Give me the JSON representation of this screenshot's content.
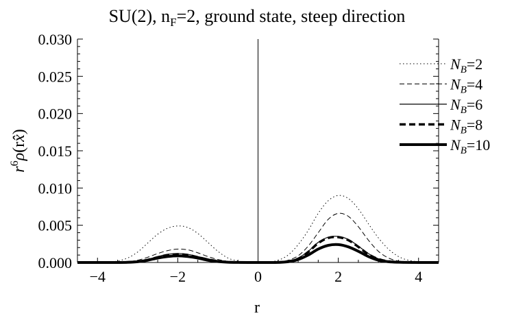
{
  "chart_data": {
    "type": "line",
    "title": "SU(2), n_F=2, ground state, steep direction",
    "xlabel": "r",
    "ylabel": "r^6 ρ(r x̂)",
    "xlim": [
      -4.5,
      4.5
    ],
    "ylim": [
      0,
      0.03
    ],
    "x_ticks": [
      -4,
      -2,
      0,
      2,
      4
    ],
    "y_ticks": [
      0.0,
      0.005,
      0.01,
      0.015,
      0.02,
      0.025,
      0.03
    ],
    "x_tick_labels": [
      "−4",
      "−2",
      "0",
      "2",
      "4"
    ],
    "y_tick_labels": [
      "0.000",
      "0.005",
      "0.010",
      "0.015",
      "0.020",
      "0.025",
      "0.030"
    ],
    "legend_position": "top-right",
    "grid": false,
    "x": [
      -4.5,
      -4.25,
      -4.0,
      -3.75,
      -3.5,
      -3.25,
      -3.0,
      -2.75,
      -2.5,
      -2.25,
      -2.0,
      -1.75,
      -1.5,
      -1.25,
      -1.0,
      -0.75,
      -0.5,
      -0.25,
      0.0,
      0.25,
      0.5,
      0.75,
      1.0,
      1.25,
      1.5,
      1.75,
      2.0,
      2.25,
      2.5,
      2.75,
      3.0,
      3.25,
      3.5,
      3.75,
      4.0,
      4.25,
      4.5
    ],
    "series": [
      {
        "name": "N_B=2",
        "style": "dotted",
        "values": [
          0,
          0,
          1e-05,
          5e-05,
          0.0002,
          0.0006,
          0.0014,
          0.0026,
          0.0038,
          0.0046,
          0.0049,
          0.0047,
          0.0039,
          0.0027,
          0.0015,
          0.0006,
          0.0002,
          4e-05,
          0,
          5e-05,
          0.0003,
          0.001,
          0.0024,
          0.0043,
          0.0066,
          0.0083,
          0.009,
          0.0086,
          0.0072,
          0.0052,
          0.0033,
          0.0018,
          0.0008,
          0.0003,
          0.0001,
          3e-05,
          1e-05
        ]
      },
      {
        "name": "N_B=4",
        "style": "dashed",
        "values": [
          0,
          0,
          0,
          1e-05,
          4e-05,
          0.0001,
          0.0003,
          0.0007,
          0.0012,
          0.0016,
          0.0018,
          0.0017,
          0.0013,
          0.0008,
          0.0004,
          0.00015,
          4e-05,
          1e-05,
          0,
          1e-05,
          6e-05,
          0.0003,
          0.0009,
          0.0022,
          0.004,
          0.0058,
          0.0066,
          0.0062,
          0.0048,
          0.003,
          0.0015,
          0.0006,
          0.0002,
          5e-05,
          1e-05,
          0,
          0
        ]
      },
      {
        "name": "N_B=6",
        "style": "thin",
        "values": [
          0,
          0,
          0,
          0,
          1e-05,
          4e-05,
          0.00015,
          0.0004,
          0.0008,
          0.0011,
          0.0012,
          0.0011,
          0.0008,
          0.0005,
          0.0002,
          7e-05,
          2e-05,
          0,
          0,
          0,
          3e-05,
          0.0002,
          0.0006,
          0.0015,
          0.0027,
          0.0034,
          0.0035,
          0.0031,
          0.0022,
          0.0012,
          0.0005,
          0.00018,
          5e-05,
          1e-05,
          0,
          0,
          0
        ]
      },
      {
        "name": "N_B=8",
        "style": "thick-dashed",
        "values": [
          0,
          0,
          0,
          0,
          1e-05,
          3e-05,
          0.00012,
          0.00035,
          0.0007,
          0.001,
          0.0011,
          0.001,
          0.0007,
          0.0004,
          0.00018,
          6e-05,
          1e-05,
          0,
          0,
          0,
          2e-05,
          0.00015,
          0.0005,
          0.0014,
          0.0026,
          0.0033,
          0.0034,
          0.003,
          0.0021,
          0.0011,
          0.00045,
          0.00015,
          4e-05,
          1e-05,
          0,
          0,
          0
        ]
      },
      {
        "name": "N_B=10",
        "style": "thick",
        "values": [
          0,
          0,
          0,
          0,
          0,
          2e-05,
          0.0001,
          0.0003,
          0.0006,
          0.0008,
          0.0009,
          0.0008,
          0.0006,
          0.0003,
          0.00013,
          4e-05,
          1e-05,
          0,
          0,
          0,
          1e-05,
          0.0001,
          0.0004,
          0.001,
          0.0018,
          0.0023,
          0.0024,
          0.0021,
          0.0015,
          0.0008,
          0.0003,
          0.0001,
          3e-05,
          1e-05,
          0,
          0,
          0
        ]
      }
    ]
  }
}
